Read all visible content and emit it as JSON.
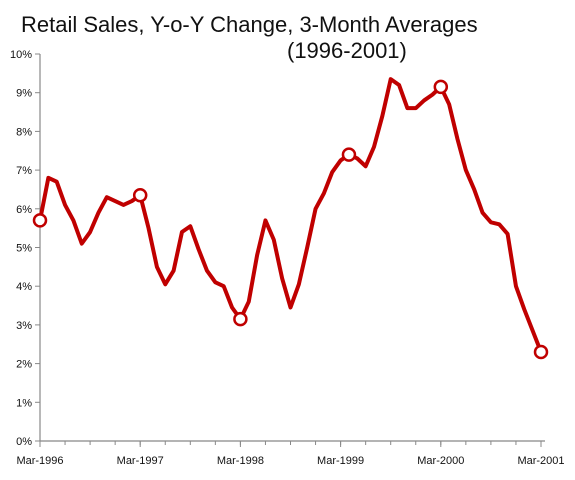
{
  "chart_data": {
    "type": "line",
    "title": [
      "Retail Sales, Y-o-Y Change, 3-Month Averages",
      "(1996-2001)"
    ],
    "xlabel": "",
    "ylabel": "",
    "ylim": [
      0,
      10
    ],
    "y_ticks": [
      "0%",
      "1%",
      "2%",
      "3%",
      "4%",
      "5%",
      "6%",
      "7%",
      "8%",
      "9%",
      "10%"
    ],
    "x_tick_labels": [
      "Mar-1996",
      "Mar-1997",
      "Mar-1998",
      "Mar-1999",
      "Mar-2000",
      "Mar-2001"
    ],
    "x_tick_month_index": [
      0,
      12,
      24,
      36,
      48,
      60
    ],
    "colors": {
      "line": "#c00000",
      "axis": "#888888",
      "marker_fill": "#ffffff"
    },
    "series": [
      {
        "x_month_index": [
          0,
          1,
          2,
          3,
          4,
          5,
          6,
          7,
          8,
          9,
          10,
          11,
          12,
          13,
          14,
          15,
          16,
          17,
          18,
          19,
          20,
          21,
          22,
          23,
          24,
          25,
          26,
          27,
          28,
          29,
          30,
          31,
          32,
          33,
          34,
          35,
          36,
          37,
          38,
          39,
          40,
          41,
          42,
          43,
          44,
          45,
          46,
          47,
          48,
          49,
          50,
          51,
          52,
          53,
          54,
          55,
          56,
          57,
          58,
          59,
          60
        ],
        "values": [
          5.7,
          6.8,
          6.7,
          6.1,
          5.7,
          5.1,
          5.4,
          5.9,
          6.3,
          6.2,
          6.1,
          6.2,
          6.35,
          5.5,
          4.5,
          4.05,
          4.4,
          5.4,
          5.55,
          4.95,
          4.4,
          4.1,
          4.0,
          3.45,
          3.15,
          3.6,
          4.8,
          5.7,
          5.2,
          4.2,
          3.45,
          4.05,
          5.0,
          6.0,
          6.4,
          6.95,
          7.25,
          7.4,
          7.3,
          7.1,
          7.6,
          8.4,
          9.35,
          9.2,
          8.6,
          8.6,
          8.8,
          8.95,
          9.15,
          8.7,
          7.8,
          7.0,
          6.5,
          5.9,
          5.65,
          5.6,
          5.35,
          4.0,
          3.4,
          2.85,
          2.3
        ],
        "highlighted_points": [
          0,
          12,
          24,
          37,
          48,
          60
        ]
      }
    ]
  }
}
